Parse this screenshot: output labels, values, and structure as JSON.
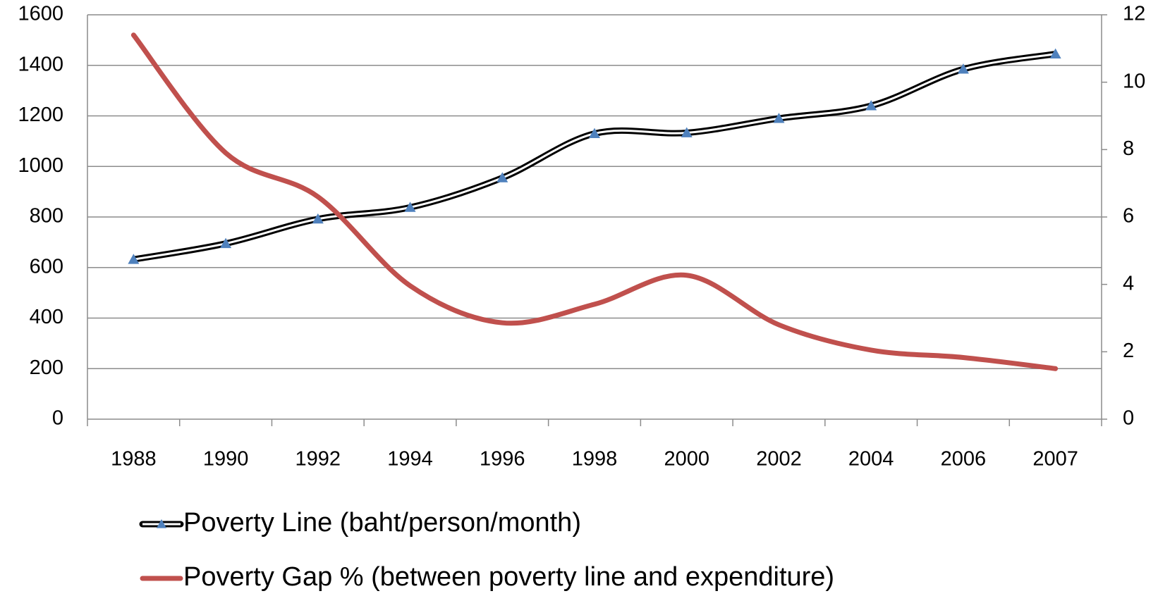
{
  "chart_data": {
    "type": "line",
    "categories": [
      "1988",
      "1990",
      "1992",
      "1994",
      "1996",
      "1998",
      "2000",
      "2002",
      "2004",
      "2006",
      "2007"
    ],
    "series": [
      {
        "name": "Poverty Line (baht/person/month)",
        "color": "#000000",
        "marker_color": "#4f81bd",
        "values": [
          632,
          695,
          792,
          838,
          955,
          1130,
          1133,
          1190,
          1240,
          1385,
          1445
        ]
      },
      {
        "name": "Poverty Gap % (between poverty line and expenditure)",
        "color": "#c0504d",
        "axis": "y2",
        "values": [
          11.4,
          7.9,
          6.6,
          3.96,
          2.86,
          3.41,
          4.27,
          2.8,
          2.05,
          1.83,
          1.5
        ]
      }
    ],
    "ylim": [
      0,
      1600
    ],
    "yticks": [
      0,
      200,
      400,
      600,
      800,
      1000,
      1200,
      1400,
      1600
    ],
    "y2lim": [
      0,
      12
    ],
    "y2ticks": [
      0,
      2,
      4,
      6,
      8,
      10,
      12
    ],
    "grid": true,
    "legend": "bottom"
  }
}
